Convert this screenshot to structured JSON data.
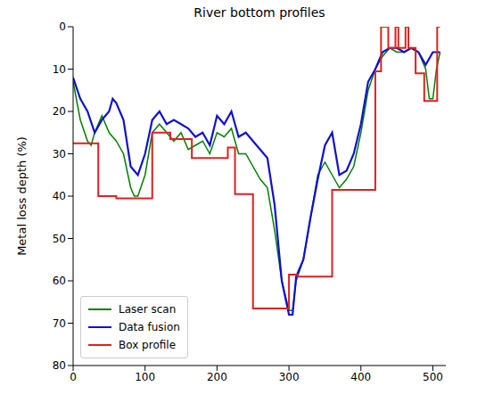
{
  "chart_data": {
    "type": "line",
    "title": "River bottom profiles",
    "y_label": "Metal loss depth (%)",
    "xlim": [
      0,
      518
    ],
    "xticks": [
      0,
      100,
      200,
      300,
      400,
      500
    ],
    "ylim": [
      80,
      0
    ],
    "yticks": [
      0,
      10,
      20,
      30,
      40,
      50,
      60,
      70,
      80
    ],
    "legend": "lower left",
    "series": [
      {
        "name": "Laser scan",
        "color": "#008000",
        "x": [
          0,
          10,
          20,
          25,
          30,
          40,
          50,
          60,
          70,
          80,
          85,
          90,
          100,
          110,
          120,
          130,
          140,
          150,
          160,
          170,
          180,
          190,
          200,
          210,
          220,
          230,
          240,
          250,
          260,
          270,
          280,
          290,
          300,
          305,
          310,
          320,
          330,
          340,
          350,
          360,
          370,
          380,
          390,
          400,
          410,
          420,
          430,
          440,
          450,
          460,
          470,
          480,
          490,
          495,
          500,
          505,
          510
        ],
        "values": [
          13,
          22,
          27,
          28,
          25,
          21,
          25,
          27,
          30,
          38,
          40,
          40,
          35,
          25,
          23,
          25,
          27,
          25,
          29,
          28,
          27,
          30,
          25,
          26,
          24,
          30,
          30,
          33,
          36,
          38,
          48,
          60,
          67,
          67,
          60,
          55,
          45,
          35,
          32,
          35,
          38,
          36,
          33,
          25,
          15,
          10,
          7,
          5,
          6,
          6,
          5,
          6,
          10,
          17,
          17,
          10,
          6
        ]
      },
      {
        "name": "Data fusion",
        "color": "#1010d0",
        "x": [
          0,
          10,
          20,
          30,
          40,
          50,
          55,
          60,
          70,
          80,
          90,
          100,
          110,
          120,
          130,
          140,
          150,
          160,
          170,
          180,
          190,
          200,
          210,
          220,
          230,
          240,
          250,
          260,
          270,
          280,
          290,
          300,
          305,
          310,
          320,
          330,
          340,
          350,
          360,
          370,
          380,
          390,
          400,
          410,
          420,
          430,
          440,
          450,
          460,
          470,
          480,
          490,
          500,
          510
        ],
        "values": [
          12,
          17,
          20,
          25,
          22,
          20,
          17,
          18,
          22,
          33,
          35,
          30,
          22,
          20,
          23,
          22,
          23,
          24,
          26,
          25,
          28,
          21,
          23,
          20,
          26,
          25,
          27,
          29,
          31,
          42,
          60,
          68,
          68,
          59,
          55,
          45,
          36,
          28,
          25,
          35,
          34,
          30,
          23,
          13,
          10,
          6,
          5,
          5,
          6,
          5,
          6,
          9,
          6,
          6
        ]
      },
      {
        "name": "Box profile",
        "color": "#e02020",
        "line_style": "steps",
        "x": [
          0,
          35,
          60,
          110,
          135,
          165,
          215,
          225,
          250,
          300,
          312,
          360,
          420,
          428,
          438,
          448,
          452,
          462,
          466,
          476,
          488,
          506,
          510
        ],
        "values": [
          27.5,
          40,
          40.5,
          25,
          26.5,
          31,
          28.5,
          39.5,
          66.5,
          58.5,
          59,
          38.5,
          10.5,
          0,
          5,
          0,
          5,
          0,
          5,
          11,
          17.5,
          0,
          0
        ]
      }
    ]
  }
}
